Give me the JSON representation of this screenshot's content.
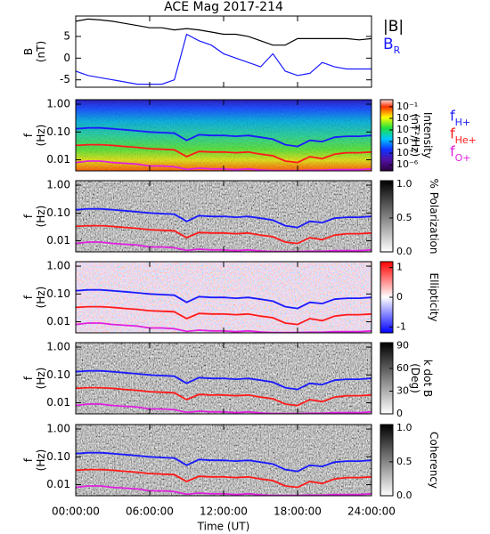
{
  "chart_data": [
    {
      "type": "line",
      "title": "ACE Mag 2017-214",
      "ylabel": [
        "B",
        "(nT)"
      ],
      "x": [
        0,
        1,
        2,
        3,
        4,
        5,
        6,
        7,
        8,
        9,
        10,
        11,
        12,
        13,
        14,
        15,
        16,
        17,
        18,
        19,
        20,
        21,
        22,
        23,
        24
      ],
      "xlim": [
        0,
        24
      ],
      "ylim": [
        -6.7,
        9.7
      ],
      "yticks": [
        5,
        0,
        -5
      ],
      "series": [
        {
          "name": "|B|",
          "color": "#000000",
          "values": [
            8.5,
            9,
            8.8,
            8.5,
            8,
            7.5,
            7,
            7,
            6.5,
            6.8,
            6.5,
            6,
            5.5,
            5.5,
            5,
            4,
            3,
            3,
            4.5,
            4.5,
            4.5,
            4.5,
            4.5,
            4.2,
            4.5
          ]
        },
        {
          "name": "BR",
          "color": "#1a1aff",
          "values": [
            -3,
            -4,
            -4.5,
            -5,
            -5.5,
            -6,
            -6,
            -6,
            -5,
            5.5,
            4,
            3,
            1,
            0,
            -1,
            -2,
            1,
            -3,
            -4,
            -3.5,
            -1,
            -2,
            -2.5,
            -2.5,
            -2.5
          ]
        }
      ]
    },
    {
      "type": "spectrogram",
      "ylabel": [
        "f",
        "(Hz)"
      ],
      "log_y": true,
      "legend": true,
      "x": [
        0,
        1,
        2,
        3,
        4,
        5,
        6,
        7,
        8,
        9,
        10,
        11,
        12,
        13,
        14,
        15,
        16,
        17,
        18,
        19,
        20,
        21,
        22,
        23,
        24
      ],
      "xlim": [
        0,
        24
      ],
      "ylim": [
        0.004,
        1.45
      ],
      "yticks": [
        {
          "value": 1,
          "label": "1.00"
        },
        {
          "value": 0.1,
          "label": "0.10"
        },
        0.01
      ],
      "colorbar": {
        "label": [
          "Intensity",
          "(nT²/Hz)"
        ],
        "lim": [
          3e-07,
          0.4
        ],
        "log": true,
        "colormap": "rainbow",
        "ticks": [
          {
            "value": 0.1,
            "label": "10⁻¹"
          },
          {
            "value": 0.01,
            "label": "10⁻²"
          },
          {
            "value": 0.001,
            "label": "10⁻³"
          },
          {
            "value": 0.0001,
            "label": "10⁻⁴"
          },
          {
            "value": 1e-05,
            "label": "10⁻⁵"
          },
          {
            "value": 1e-06,
            "label": "10⁻⁶"
          }
        ]
      },
      "series": [
        {
          "name": "fH+",
          "color": "#1a1aff",
          "values": [
            0.13,
            0.14,
            0.14,
            0.13,
            0.12,
            0.11,
            0.1,
            0.095,
            0.09,
            0.05,
            0.08,
            0.075,
            0.075,
            0.07,
            0.075,
            0.065,
            0.055,
            0.035,
            0.03,
            0.05,
            0.045,
            0.065,
            0.07,
            0.07,
            0.075
          ]
        },
        {
          "name": "fHe+",
          "color": "#ff1a1a",
          "values": [
            0.033,
            0.035,
            0.035,
            0.033,
            0.03,
            0.028,
            0.025,
            0.024,
            0.023,
            0.013,
            0.02,
            0.019,
            0.019,
            0.018,
            0.019,
            0.016,
            0.014,
            0.009,
            0.008,
            0.013,
            0.011,
            0.016,
            0.018,
            0.018,
            0.019
          ]
        },
        {
          "name": "fO+",
          "color": "#e020e0",
          "values": [
            0.008,
            0.009,
            0.009,
            0.008,
            0.0075,
            0.007,
            0.006,
            0.006,
            0.0056,
            0.0045,
            0.005,
            0.0047,
            0.0047,
            0.0044,
            0.0047,
            0.0043,
            0.0041,
            0.0041,
            0.0041,
            0.0042,
            0.0042,
            0.0044,
            0.0044,
            0.0044,
            0.0047
          ]
        }
      ]
    },
    {
      "type": "spectrogram",
      "ylabel": [
        "f",
        "(Hz)"
      ],
      "log_y": true,
      "x": [
        0,
        1,
        2,
        3,
        4,
        5,
        6,
        7,
        8,
        9,
        10,
        11,
        12,
        13,
        14,
        15,
        16,
        17,
        18,
        19,
        20,
        21,
        22,
        23,
        24
      ],
      "xlim": [
        0,
        24
      ],
      "ylim": [
        0.004,
        1.45
      ],
      "yticks": [
        {
          "value": 1,
          "label": "1.00"
        },
        {
          "value": 0.1,
          "label": "0.10"
        },
        0.01
      ],
      "colorbar": {
        "label": [
          "% Polarization"
        ],
        "lim": [
          0,
          1.05
        ],
        "log": false,
        "colormap": "gray",
        "ticks": [
          {
            "value": 1,
            "label": "1.0"
          },
          {
            "value": 0.5,
            "label": "0.5"
          },
          {
            "value": 0,
            "label": "0.0"
          }
        ]
      },
      "series": [
        {
          "name": "fH+",
          "color": "#1a1aff",
          "values": [
            0.13,
            0.14,
            0.14,
            0.13,
            0.12,
            0.11,
            0.1,
            0.095,
            0.09,
            0.05,
            0.08,
            0.075,
            0.075,
            0.07,
            0.075,
            0.065,
            0.055,
            0.035,
            0.03,
            0.05,
            0.045,
            0.065,
            0.07,
            0.07,
            0.075
          ]
        },
        {
          "name": "fHe+",
          "color": "#ff1a1a",
          "values": [
            0.033,
            0.035,
            0.035,
            0.033,
            0.03,
            0.028,
            0.025,
            0.024,
            0.023,
            0.013,
            0.02,
            0.019,
            0.019,
            0.018,
            0.019,
            0.016,
            0.014,
            0.009,
            0.008,
            0.013,
            0.011,
            0.016,
            0.018,
            0.018,
            0.019
          ]
        },
        {
          "name": "fO+",
          "color": "#e020e0",
          "values": [
            0.008,
            0.009,
            0.009,
            0.008,
            0.0075,
            0.007,
            0.006,
            0.006,
            0.0056,
            0.0045,
            0.005,
            0.0047,
            0.0047,
            0.0044,
            0.0047,
            0.0043,
            0.0041,
            0.0041,
            0.0041,
            0.0042,
            0.0042,
            0.0044,
            0.0044,
            0.0044,
            0.0047
          ]
        }
      ]
    },
    {
      "type": "spectrogram",
      "ylabel": [
        "f",
        "(Hz)"
      ],
      "log_y": true,
      "x": [
        0,
        1,
        2,
        3,
        4,
        5,
        6,
        7,
        8,
        9,
        10,
        11,
        12,
        13,
        14,
        15,
        16,
        17,
        18,
        19,
        20,
        21,
        22,
        23,
        24
      ],
      "xlim": [
        0,
        24
      ],
      "ylim": [
        0.004,
        1.45
      ],
      "yticks": [
        {
          "value": 1,
          "label": "1.00"
        },
        {
          "value": 0.1,
          "label": "0.10"
        },
        0.01
      ],
      "colorbar": {
        "label": [
          "Ellipticity"
        ],
        "lim": [
          -1.2,
          1.2
        ],
        "log": false,
        "colormap": "bwr",
        "ticks": [
          1,
          0,
          -1
        ]
      },
      "series": [
        {
          "name": "fH+",
          "color": "#1a1aff",
          "values": [
            0.13,
            0.14,
            0.14,
            0.13,
            0.12,
            0.11,
            0.1,
            0.095,
            0.09,
            0.05,
            0.08,
            0.075,
            0.075,
            0.07,
            0.075,
            0.065,
            0.055,
            0.035,
            0.03,
            0.05,
            0.045,
            0.065,
            0.07,
            0.07,
            0.075
          ]
        },
        {
          "name": "fHe+",
          "color": "#ff1a1a",
          "values": [
            0.033,
            0.035,
            0.035,
            0.033,
            0.03,
            0.028,
            0.025,
            0.024,
            0.023,
            0.013,
            0.02,
            0.019,
            0.019,
            0.018,
            0.019,
            0.016,
            0.014,
            0.009,
            0.008,
            0.013,
            0.011,
            0.016,
            0.018,
            0.018,
            0.019
          ]
        },
        {
          "name": "fO+",
          "color": "#e020e0",
          "values": [
            0.008,
            0.009,
            0.009,
            0.008,
            0.0075,
            0.007,
            0.006,
            0.006,
            0.0056,
            0.0045,
            0.005,
            0.0047,
            0.0047,
            0.0044,
            0.0047,
            0.0043,
            0.0041,
            0.0041,
            0.0041,
            0.0042,
            0.0042,
            0.0044,
            0.0044,
            0.0044,
            0.0047
          ]
        }
      ]
    },
    {
      "type": "spectrogram",
      "ylabel": [
        "f",
        "(Hz)"
      ],
      "log_y": true,
      "x": [
        0,
        1,
        2,
        3,
        4,
        5,
        6,
        7,
        8,
        9,
        10,
        11,
        12,
        13,
        14,
        15,
        16,
        17,
        18,
        19,
        20,
        21,
        22,
        23,
        24
      ],
      "xlim": [
        0,
        24
      ],
      "ylim": [
        0.004,
        1.45
      ],
      "yticks": [
        {
          "value": 1,
          "label": "1.00"
        },
        {
          "value": 0.1,
          "label": "0.10"
        },
        0.01
      ],
      "colorbar": {
        "label": [
          "k dot B",
          "(Deg)"
        ],
        "lim": [
          0,
          94
        ],
        "log": false,
        "colormap": "gray",
        "ticks": [
          90,
          60,
          30,
          0
        ]
      },
      "series": [
        {
          "name": "fH+",
          "color": "#1a1aff",
          "values": [
            0.13,
            0.14,
            0.14,
            0.13,
            0.12,
            0.11,
            0.1,
            0.095,
            0.09,
            0.05,
            0.08,
            0.075,
            0.075,
            0.07,
            0.075,
            0.065,
            0.055,
            0.035,
            0.03,
            0.05,
            0.045,
            0.065,
            0.07,
            0.07,
            0.075
          ]
        },
        {
          "name": "fHe+",
          "color": "#ff1a1a",
          "values": [
            0.033,
            0.035,
            0.035,
            0.033,
            0.03,
            0.028,
            0.025,
            0.024,
            0.023,
            0.013,
            0.02,
            0.019,
            0.019,
            0.018,
            0.019,
            0.016,
            0.014,
            0.009,
            0.008,
            0.013,
            0.011,
            0.016,
            0.018,
            0.018,
            0.019
          ]
        },
        {
          "name": "fO+",
          "color": "#e020e0",
          "values": [
            0.008,
            0.009,
            0.009,
            0.008,
            0.0075,
            0.007,
            0.006,
            0.006,
            0.0056,
            0.0045,
            0.005,
            0.0047,
            0.0047,
            0.0044,
            0.0047,
            0.0043,
            0.0041,
            0.0041,
            0.0041,
            0.0042,
            0.0042,
            0.0044,
            0.0044,
            0.0044,
            0.0047
          ]
        }
      ]
    },
    {
      "type": "spectrogram",
      "ylabel": [
        "f",
        "(Hz)"
      ],
      "log_y": true,
      "x": [
        0,
        1,
        2,
        3,
        4,
        5,
        6,
        7,
        8,
        9,
        10,
        11,
        12,
        13,
        14,
        15,
        16,
        17,
        18,
        19,
        20,
        21,
        22,
        23,
        24
      ],
      "xlim": [
        0,
        24
      ],
      "ylim": [
        0.004,
        1.45
      ],
      "yticks": [
        {
          "value": 1,
          "label": "1.00"
        },
        {
          "value": 0.1,
          "label": "0.10"
        },
        0.01
      ],
      "colorbar": {
        "label": [
          "Coherency"
        ],
        "lim": [
          0,
          1.05
        ],
        "log": false,
        "colormap": "gray",
        "ticks": [
          {
            "value": 1,
            "label": "1.0"
          },
          {
            "value": 0.5,
            "label": "0.5"
          },
          {
            "value": 0,
            "label": "0.0"
          }
        ]
      },
      "series": [
        {
          "name": "fH+",
          "color": "#1a1aff",
          "values": [
            0.13,
            0.14,
            0.14,
            0.13,
            0.12,
            0.11,
            0.1,
            0.095,
            0.09,
            0.05,
            0.08,
            0.075,
            0.075,
            0.07,
            0.075,
            0.065,
            0.055,
            0.035,
            0.03,
            0.05,
            0.045,
            0.065,
            0.07,
            0.07,
            0.075
          ]
        },
        {
          "name": "fHe+",
          "color": "#ff1a1a",
          "values": [
            0.033,
            0.035,
            0.035,
            0.033,
            0.03,
            0.028,
            0.025,
            0.024,
            0.023,
            0.013,
            0.02,
            0.019,
            0.019,
            0.018,
            0.019,
            0.016,
            0.014,
            0.009,
            0.008,
            0.013,
            0.011,
            0.016,
            0.018,
            0.018,
            0.019
          ]
        },
        {
          "name": "fO+",
          "color": "#e020e0",
          "values": [
            0.008,
            0.009,
            0.009,
            0.008,
            0.0075,
            0.007,
            0.006,
            0.006,
            0.0056,
            0.0045,
            0.005,
            0.0047,
            0.0047,
            0.0044,
            0.0047,
            0.0043,
            0.0041,
            0.0041,
            0.0041,
            0.0042,
            0.0042,
            0.0044,
            0.0044,
            0.0044,
            0.0047
          ]
        }
      ],
      "xticks": [
        {
          "value": 0,
          "label": "00:00:00"
        },
        {
          "value": 6,
          "label": "06:00:00"
        },
        {
          "value": 12,
          "label": "12:00:00"
        },
        {
          "value": 18,
          "label": "18:00:00"
        },
        {
          "value": 24,
          "label": "24:00:00"
        }
      ],
      "xlabel": "Time (UT)"
    }
  ]
}
